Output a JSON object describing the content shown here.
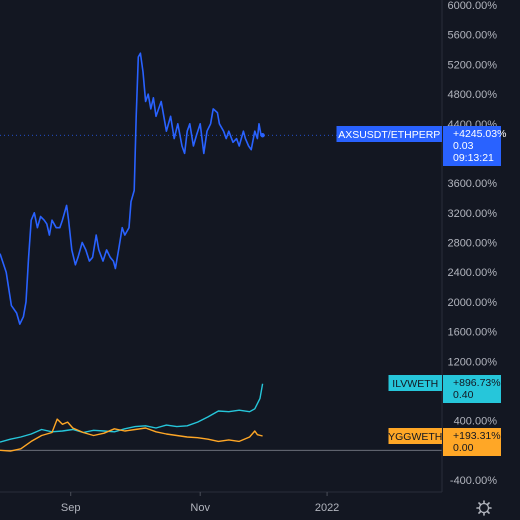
{
  "chart_data": {
    "type": "line",
    "y_unit": "%",
    "ylim": [
      -500,
      6000
    ],
    "y_ticks": [
      "6000.00%",
      "5600.00%",
      "5200.00%",
      "4800.00%",
      "4400.00%",
      "3600.00%",
      "3200.00%",
      "2800.00%",
      "2400.00%",
      "2000.00%",
      "1600.00%",
      "1200.00%",
      "400.00%",
      "-400.00%"
    ],
    "y_tick_values": [
      6000,
      5600,
      5200,
      4800,
      4400,
      3600,
      3200,
      2800,
      2400,
      2000,
      1600,
      1200,
      400,
      -400
    ],
    "x_ticks": [
      "Sep",
      "Nov",
      "2022"
    ],
    "x_tick_positions": [
      0.136,
      0.385,
      0.629
    ],
    "grid": false,
    "series": [
      {
        "name": "AXSUSDT/ETHPERP",
        "color": "#2962ff",
        "value_label": "+4245.03%",
        "price_label": "0.03",
        "time_label": "09:13:21",
        "points": [
          [
            0.0,
            2650
          ],
          [
            0.012,
            2400
          ],
          [
            0.022,
            1950
          ],
          [
            0.032,
            1850
          ],
          [
            0.038,
            1700
          ],
          [
            0.045,
            1800
          ],
          [
            0.05,
            2000
          ],
          [
            0.055,
            2600
          ],
          [
            0.06,
            3100
          ],
          [
            0.066,
            3200
          ],
          [
            0.072,
            3000
          ],
          [
            0.078,
            3150
          ],
          [
            0.085,
            3100
          ],
          [
            0.09,
            3050
          ],
          [
            0.095,
            2900
          ],
          [
            0.1,
            3100
          ],
          [
            0.108,
            3000
          ],
          [
            0.115,
            3000
          ],
          [
            0.12,
            3100
          ],
          [
            0.128,
            3300
          ],
          [
            0.132,
            3100
          ],
          [
            0.138,
            2700
          ],
          [
            0.145,
            2500
          ],
          [
            0.15,
            2600
          ],
          [
            0.158,
            2800
          ],
          [
            0.165,
            2700
          ],
          [
            0.172,
            2550
          ],
          [
            0.178,
            2600
          ],
          [
            0.185,
            2900
          ],
          [
            0.19,
            2700
          ],
          [
            0.198,
            2550
          ],
          [
            0.205,
            2700
          ],
          [
            0.212,
            2600
          ],
          [
            0.218,
            2550
          ],
          [
            0.222,
            2450
          ],
          [
            0.228,
            2700
          ],
          [
            0.235,
            3000
          ],
          [
            0.24,
            2900
          ],
          [
            0.248,
            3000
          ],
          [
            0.252,
            3350
          ],
          [
            0.258,
            3500
          ],
          [
            0.262,
            4500
          ],
          [
            0.266,
            5300
          ],
          [
            0.27,
            5350
          ],
          [
            0.275,
            5100
          ],
          [
            0.28,
            4700
          ],
          [
            0.285,
            4800
          ],
          [
            0.29,
            4600
          ],
          [
            0.295,
            4750
          ],
          [
            0.3,
            4500
          ],
          [
            0.305,
            4600
          ],
          [
            0.31,
            4700
          ],
          [
            0.315,
            4500
          ],
          [
            0.32,
            4300
          ],
          [
            0.328,
            4500
          ],
          [
            0.335,
            4200
          ],
          [
            0.342,
            4400
          ],
          [
            0.35,
            4100
          ],
          [
            0.355,
            4000
          ],
          [
            0.36,
            4300
          ],
          [
            0.365,
            4400
          ],
          [
            0.372,
            4100
          ],
          [
            0.378,
            4250
          ],
          [
            0.385,
            4400
          ],
          [
            0.392,
            4000
          ],
          [
            0.398,
            4300
          ],
          [
            0.405,
            4400
          ],
          [
            0.41,
            4600
          ],
          [
            0.418,
            4550
          ],
          [
            0.422,
            4400
          ],
          [
            0.43,
            4300
          ],
          [
            0.435,
            4200
          ],
          [
            0.44,
            4300
          ],
          [
            0.448,
            4150
          ],
          [
            0.455,
            4200
          ],
          [
            0.46,
            4100
          ],
          [
            0.468,
            4300
          ],
          [
            0.472,
            4200
          ],
          [
            0.478,
            4100
          ],
          [
            0.483,
            4050
          ],
          [
            0.49,
            4300
          ],
          [
            0.495,
            4200
          ],
          [
            0.498,
            4400
          ],
          [
            0.502,
            4250
          ],
          [
            0.505,
            4245
          ]
        ]
      },
      {
        "name": "ILVWETH",
        "color": "#26c6da",
        "value_label": "+896.73%",
        "price_label": "0.40",
        "points": [
          [
            0.0,
            110
          ],
          [
            0.02,
            150
          ],
          [
            0.04,
            180
          ],
          [
            0.06,
            220
          ],
          [
            0.08,
            280
          ],
          [
            0.1,
            250
          ],
          [
            0.12,
            260
          ],
          [
            0.14,
            280
          ],
          [
            0.16,
            240
          ],
          [
            0.18,
            270
          ],
          [
            0.2,
            260
          ],
          [
            0.22,
            250
          ],
          [
            0.24,
            290
          ],
          [
            0.26,
            320
          ],
          [
            0.28,
            330
          ],
          [
            0.3,
            300
          ],
          [
            0.32,
            340
          ],
          [
            0.34,
            320
          ],
          [
            0.36,
            330
          ],
          [
            0.38,
            380
          ],
          [
            0.4,
            450
          ],
          [
            0.42,
            530
          ],
          [
            0.44,
            520
          ],
          [
            0.46,
            540
          ],
          [
            0.48,
            520
          ],
          [
            0.49,
            560
          ],
          [
            0.5,
            700
          ],
          [
            0.505,
            896
          ]
        ]
      },
      {
        "name": "YGGWETH",
        "color": "#ffa726",
        "value_label": "+193.31%",
        "price_label": "0.00",
        "points": [
          [
            0.0,
            0
          ],
          [
            0.02,
            -10
          ],
          [
            0.04,
            20
          ],
          [
            0.06,
            120
          ],
          [
            0.08,
            200
          ],
          [
            0.1,
            240
          ],
          [
            0.11,
            420
          ],
          [
            0.12,
            350
          ],
          [
            0.13,
            380
          ],
          [
            0.14,
            300
          ],
          [
            0.16,
            240
          ],
          [
            0.18,
            200
          ],
          [
            0.2,
            230
          ],
          [
            0.22,
            290
          ],
          [
            0.24,
            260
          ],
          [
            0.26,
            280
          ],
          [
            0.28,
            300
          ],
          [
            0.3,
            250
          ],
          [
            0.32,
            220
          ],
          [
            0.34,
            200
          ],
          [
            0.36,
            180
          ],
          [
            0.38,
            170
          ],
          [
            0.4,
            150
          ],
          [
            0.42,
            120
          ],
          [
            0.44,
            140
          ],
          [
            0.46,
            120
          ],
          [
            0.48,
            180
          ],
          [
            0.49,
            260
          ],
          [
            0.495,
            210
          ],
          [
            0.505,
            193
          ]
        ]
      }
    ]
  }
}
